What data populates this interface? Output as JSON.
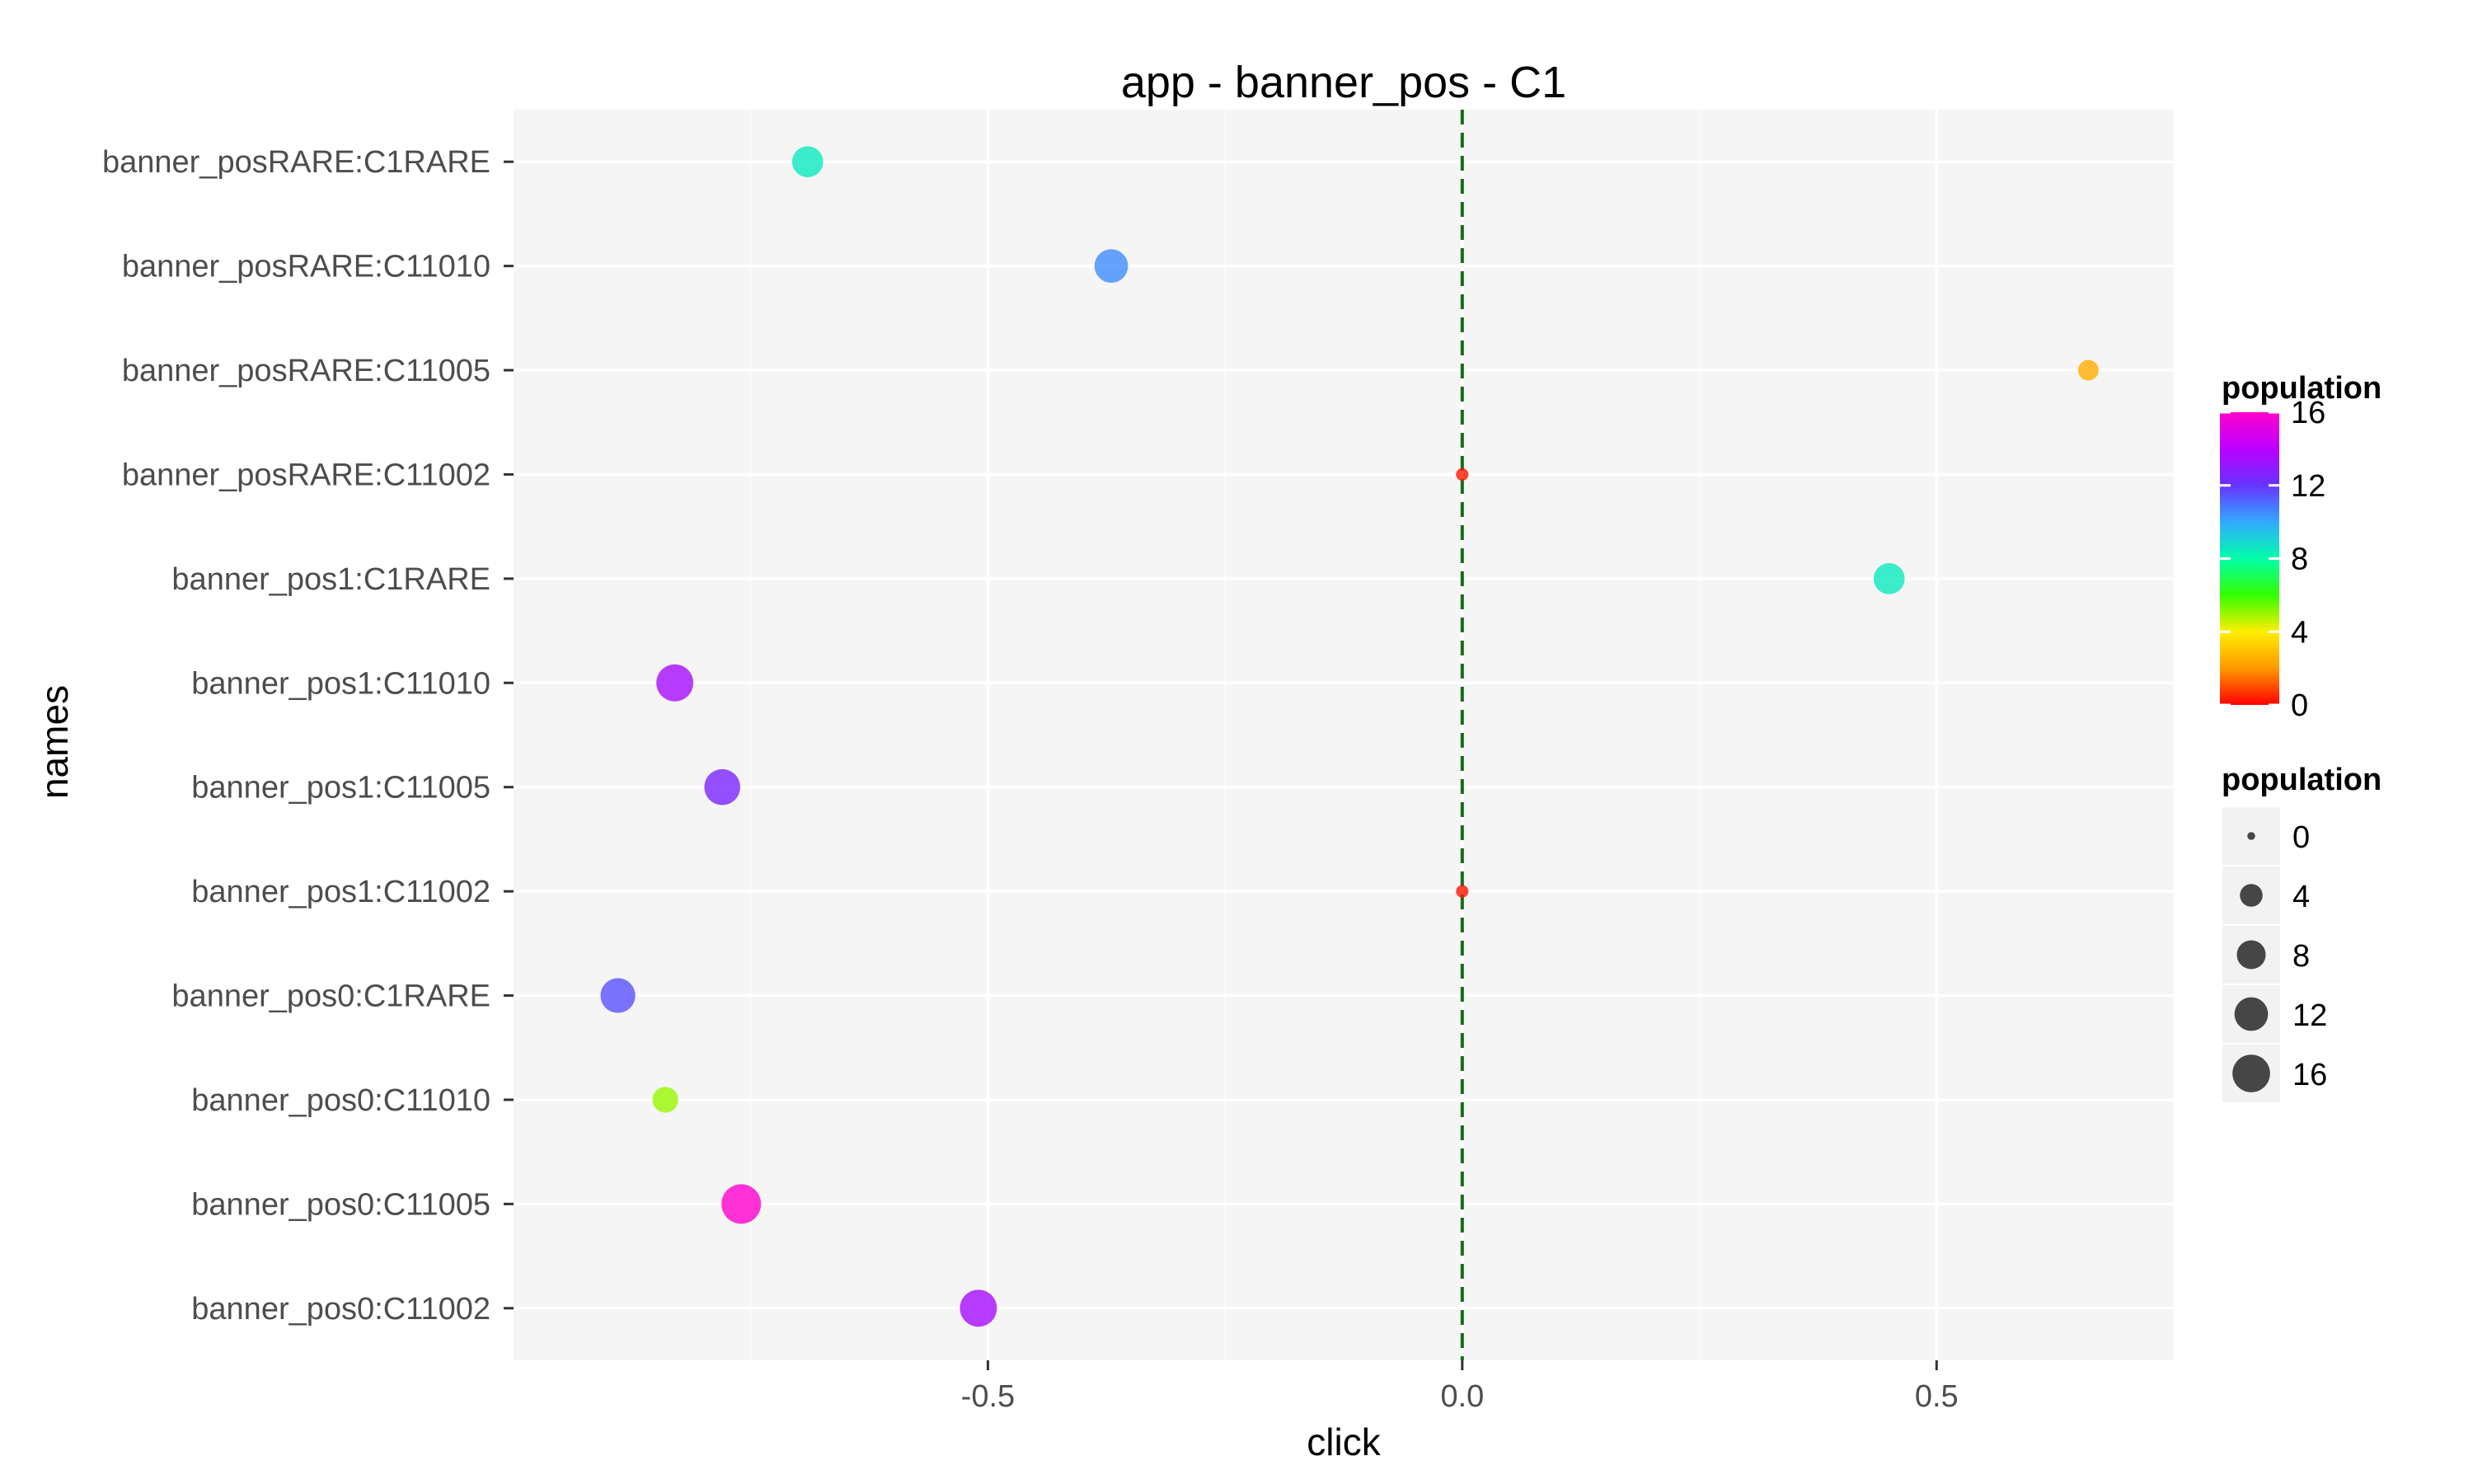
{
  "chart_data": {
    "type": "scatter",
    "title": "app - banner_pos - C1",
    "xlabel": "click",
    "ylabel": "names",
    "xlim": [
      -1.0,
      0.75
    ],
    "x_ticks": [
      {
        "value": -0.5,
        "label": "-0.5"
      },
      {
        "value": 0.0,
        "label": "0.0"
      },
      {
        "value": 0.5,
        "label": "0.5"
      }
    ],
    "categories": [
      "banner_posRARE:C1RARE",
      "banner_posRARE:C11010",
      "banner_posRARE:C11005",
      "banner_posRARE:C11002",
      "banner_pos1:C1RARE",
      "banner_pos1:C11010",
      "banner_pos1:C11005",
      "banner_pos1:C11002",
      "banner_pos0:C1RARE",
      "banner_pos0:C11010",
      "banner_pos0:C11005",
      "banner_pos0:C11002"
    ],
    "points": [
      {
        "name": "banner_posRARE:C1RARE",
        "click": -0.69,
        "population": 8.5
      },
      {
        "name": "banner_posRARE:C11010",
        "click": -0.37,
        "population": 10.5
      },
      {
        "name": "banner_posRARE:C11005",
        "click": 0.66,
        "population": 2.5
      },
      {
        "name": "banner_posRARE:C11002",
        "click": 0.0,
        "population": 0.3
      },
      {
        "name": "banner_pos1:C1RARE",
        "click": 0.45,
        "population": 8.5
      },
      {
        "name": "banner_pos1:C11010",
        "click": -0.83,
        "population": 13.5
      },
      {
        "name": "banner_pos1:C11005",
        "click": -0.78,
        "population": 12.5
      },
      {
        "name": "banner_pos1:C11002",
        "click": 0.0,
        "population": 0.3
      },
      {
        "name": "banner_pos0:C1RARE",
        "click": -0.89,
        "population": 11.5
      },
      {
        "name": "banner_pos0:C11010",
        "click": -0.84,
        "population": 5.0
      },
      {
        "name": "banner_pos0:C11005",
        "click": -0.76,
        "population": 16.0
      },
      {
        "name": "banner_pos0:C11002",
        "click": -0.51,
        "population": 13.5
      }
    ],
    "reference_line": {
      "x": 0.0,
      "style": "dashed",
      "color": "#1a6b1a"
    },
    "color_legend": {
      "title": "population",
      "labels": [
        "16",
        "12",
        "8",
        "4",
        "0"
      ],
      "range": [
        0,
        16
      ],
      "colors": [
        "#ff0000",
        "#ff9900",
        "#ffee00",
        "#33ff00",
        "#00ffaa",
        "#33aaff",
        "#6633ff",
        "#bb00ff",
        "#ff00cc"
      ]
    },
    "size_legend": {
      "title": "population",
      "values": [
        0,
        4,
        8,
        12,
        16
      ],
      "labels": [
        "0",
        "4",
        "8",
        "12",
        "16"
      ]
    },
    "grid": true,
    "legend_position": "right"
  }
}
